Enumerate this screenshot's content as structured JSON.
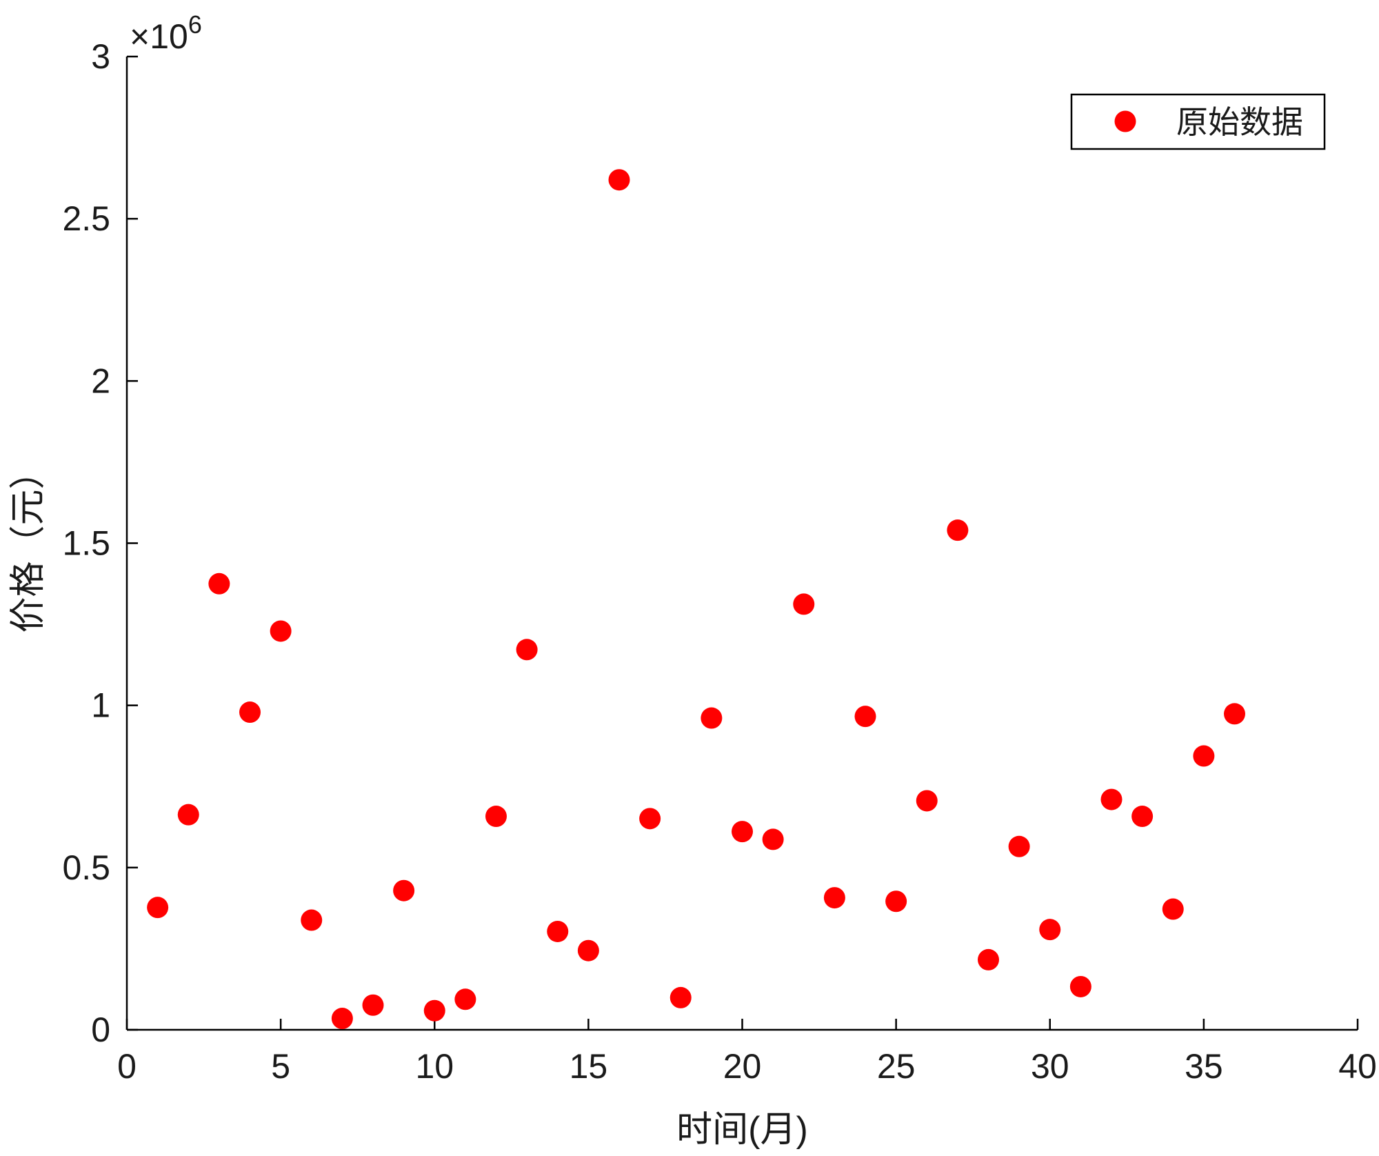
{
  "chart_data": {
    "type": "scatter",
    "xlabel": "时间(月)",
    "ylabel": "价格（元）",
    "xlim": [
      0,
      40
    ],
    "ylim": [
      0,
      3000000
    ],
    "x_ticks": [
      0,
      5,
      10,
      15,
      20,
      25,
      30,
      35,
      40
    ],
    "x_tick_labels": [
      "0",
      "5",
      "10",
      "15",
      "20",
      "25",
      "30",
      "35",
      "40"
    ],
    "y_ticks": [
      0,
      500000,
      1000000,
      1500000,
      2000000,
      2500000,
      3000000
    ],
    "y_tick_labels": [
      "0",
      "0.5",
      "1",
      "1.5",
      "2",
      "2.5",
      "3"
    ],
    "y_multiplier_base": "×10",
    "y_multiplier_exp": "6",
    "grid": false,
    "legend_position": "top-right",
    "series": [
      {
        "name": "原始数据",
        "color": "#ff0000",
        "marker": "circle",
        "x": [
          1,
          2,
          3,
          4,
          5,
          6,
          7,
          8,
          9,
          10,
          11,
          12,
          13,
          14,
          15,
          16,
          17,
          18,
          19,
          20,
          21,
          22,
          23,
          24,
          25,
          26,
          27,
          28,
          29,
          30,
          31,
          32,
          33,
          34,
          35,
          36
        ],
        "y": [
          377000,
          663000,
          1375000,
          979000,
          1229000,
          338000,
          35000,
          76000,
          429000,
          59000,
          94000,
          658000,
          1172000,
          303000,
          244000,
          2620000,
          651000,
          99000,
          961000,
          611000,
          587000,
          1312000,
          407000,
          966000,
          396000,
          706000,
          1540000,
          216000,
          565000,
          309000,
          133000,
          710000,
          658000,
          372000,
          844000,
          974000
        ]
      }
    ]
  }
}
